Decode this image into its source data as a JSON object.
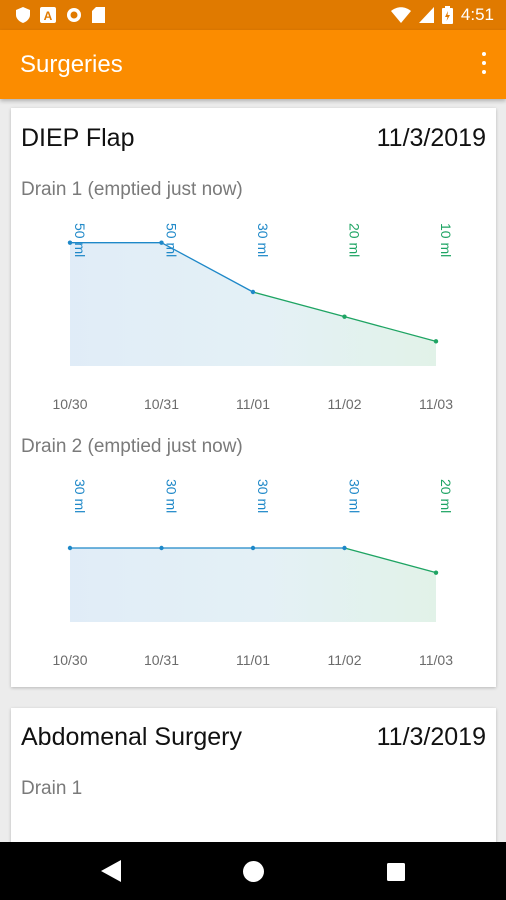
{
  "status_bar": {
    "time": "4:51"
  },
  "app_bar": {
    "title": "Surgeries"
  },
  "colors": {
    "accent": "#fb8c00",
    "status": "#e07a00",
    "blue": "#1e88c8",
    "green": "#1ea463"
  },
  "surgeries": [
    {
      "name": "DIEP Flap",
      "date": "11/3/2019",
      "drains": [
        {
          "label": "Drain 1 (emptied just now)",
          "chart_data": {
            "type": "area",
            "categories": [
              "10/30",
              "10/31",
              "11/01",
              "11/02",
              "11/03"
            ],
            "values": [
              50,
              50,
              30,
              20,
              10
            ],
            "value_labels": [
              "50 ml",
              "50 ml",
              "30 ml",
              "20 ml",
              "10 ml"
            ],
            "ylim": [
              0,
              60
            ]
          }
        },
        {
          "label": "Drain 2 (emptied just now)",
          "chart_data": {
            "type": "area",
            "categories": [
              "10/30",
              "10/31",
              "11/01",
              "11/02",
              "11/03"
            ],
            "values": [
              30,
              30,
              30,
              30,
              20
            ],
            "value_labels": [
              "30 ml",
              "30 ml",
              "30 ml",
              "30 ml",
              "20 ml"
            ],
            "ylim": [
              0,
              60
            ]
          }
        }
      ]
    },
    {
      "name": "Abdomenal Surgery",
      "date": "11/3/2019",
      "drains": [
        {
          "label": "Drain 1"
        }
      ]
    }
  ]
}
